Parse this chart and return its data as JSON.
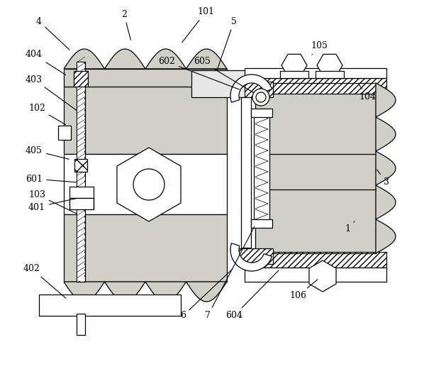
{
  "bg_color": "#ffffff",
  "figsize": [
    5.98,
    5.27
  ],
  "dpi": 100,
  "dot_color": "#d0cfc8",
  "hatch_lw": 0.5,
  "line_lw": 0.9
}
